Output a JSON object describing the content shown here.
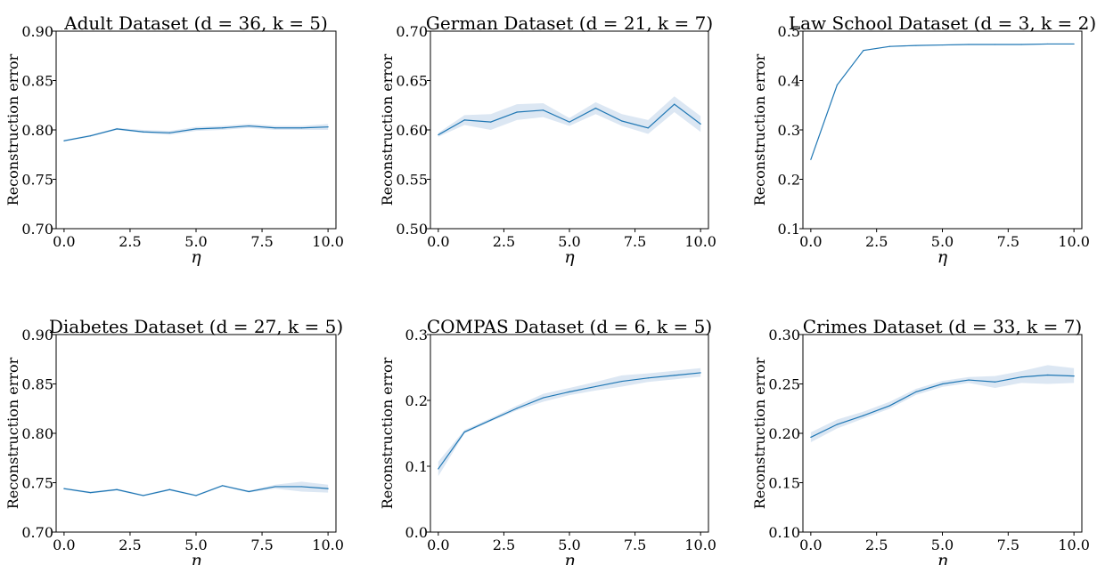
{
  "chart_data": [
    {
      "type": "line",
      "title": "Adult Dataset (d = 36, k = 5)",
      "xlabel": "η",
      "ylabel": "Reconstruction error",
      "xlim": [
        -0.3,
        10.3
      ],
      "ylim": [
        0.7,
        0.9
      ],
      "xticks": [
        0.0,
        2.5,
        5.0,
        7.5,
        10.0
      ],
      "xtick_labels": [
        "0.0",
        "2.5",
        "5.0",
        "7.5",
        "10.0"
      ],
      "yticks": [
        0.7,
        0.75,
        0.8,
        0.85,
        0.9
      ],
      "ytick_labels": [
        "0.70",
        "0.75",
        "0.80",
        "0.85",
        "0.90"
      ],
      "x": [
        0,
        1,
        2,
        3,
        4,
        5,
        6,
        7,
        8,
        9,
        10
      ],
      "y": [
        0.789,
        0.794,
        0.801,
        0.798,
        0.797,
        0.801,
        0.802,
        0.804,
        0.802,
        0.802,
        0.803
      ],
      "lower": [
        0.788,
        0.793,
        0.8,
        0.797,
        0.795,
        0.799,
        0.8,
        0.802,
        0.8,
        0.8,
        0.8
      ],
      "upper": [
        0.79,
        0.795,
        0.802,
        0.8,
        0.799,
        0.803,
        0.804,
        0.806,
        0.804,
        0.804,
        0.806
      ],
      "grid": false
    },
    {
      "type": "line",
      "title": "German Dataset (d = 21, k = 7)",
      "xlabel": "η",
      "ylabel": "Reconstruction error",
      "xlim": [
        -0.3,
        10.3
      ],
      "ylim": [
        0.5,
        0.7
      ],
      "xticks": [
        0.0,
        2.5,
        5.0,
        7.5,
        10.0
      ],
      "xtick_labels": [
        "0.0",
        "2.5",
        "5.0",
        "7.5",
        "10.0"
      ],
      "yticks": [
        0.5,
        0.55,
        0.6,
        0.65,
        0.7
      ],
      "ytick_labels": [
        "0.50",
        "0.55",
        "0.60",
        "0.65",
        "0.70"
      ],
      "x": [
        0,
        1,
        2,
        3,
        4,
        5,
        6,
        7,
        8,
        9,
        10
      ],
      "y": [
        0.595,
        0.61,
        0.608,
        0.618,
        0.62,
        0.608,
        0.622,
        0.609,
        0.602,
        0.626,
        0.606
      ],
      "lower": [
        0.593,
        0.605,
        0.6,
        0.61,
        0.613,
        0.604,
        0.616,
        0.604,
        0.596,
        0.618,
        0.598
      ],
      "upper": [
        0.597,
        0.615,
        0.616,
        0.626,
        0.627,
        0.612,
        0.628,
        0.616,
        0.61,
        0.634,
        0.614
      ],
      "grid": false
    },
    {
      "type": "line",
      "title": "Law School Dataset (d = 3, k = 2)",
      "xlabel": "η",
      "ylabel": "Reconstruction error",
      "xlim": [
        -0.3,
        10.3
      ],
      "ylim": [
        0.1,
        0.5
      ],
      "xticks": [
        0.0,
        2.5,
        5.0,
        7.5,
        10.0
      ],
      "xtick_labels": [
        "0.0",
        "2.5",
        "5.0",
        "7.5",
        "10.0"
      ],
      "yticks": [
        0.1,
        0.2,
        0.3,
        0.4,
        0.5
      ],
      "ytick_labels": [
        "0.1",
        "0.2",
        "0.3",
        "0.4",
        "0.5"
      ],
      "x": [
        0,
        1,
        2,
        3,
        4,
        5,
        6,
        7,
        8,
        9,
        10
      ],
      "y": [
        0.24,
        0.391,
        0.461,
        0.469,
        0.471,
        0.472,
        0.473,
        0.473,
        0.473,
        0.474,
        0.474
      ],
      "lower": [
        0.239,
        0.39,
        0.46,
        0.468,
        0.47,
        0.471,
        0.472,
        0.472,
        0.472,
        0.473,
        0.473
      ],
      "upper": [
        0.241,
        0.392,
        0.462,
        0.47,
        0.472,
        0.473,
        0.474,
        0.474,
        0.474,
        0.475,
        0.475
      ],
      "grid": false
    },
    {
      "type": "line",
      "title": "Diabetes Dataset (d = 27, k = 5)",
      "xlabel": "η",
      "ylabel": "Reconstruction error",
      "xlim": [
        -0.3,
        10.3
      ],
      "ylim": [
        0.7,
        0.9
      ],
      "xticks": [
        0.0,
        2.5,
        5.0,
        7.5,
        10.0
      ],
      "xtick_labels": [
        "0.0",
        "2.5",
        "5.0",
        "7.5",
        "10.0"
      ],
      "yticks": [
        0.7,
        0.75,
        0.8,
        0.85,
        0.9
      ],
      "ytick_labels": [
        "0.70",
        "0.75",
        "0.80",
        "0.85",
        "0.90"
      ],
      "x": [
        0,
        1,
        2,
        3,
        4,
        5,
        6,
        7,
        8,
        9,
        10
      ],
      "y": [
        0.744,
        0.74,
        0.743,
        0.737,
        0.743,
        0.737,
        0.747,
        0.741,
        0.746,
        0.746,
        0.744
      ],
      "lower": [
        0.743,
        0.739,
        0.742,
        0.736,
        0.742,
        0.736,
        0.746,
        0.74,
        0.744,
        0.741,
        0.74
      ],
      "upper": [
        0.745,
        0.741,
        0.744,
        0.738,
        0.744,
        0.738,
        0.748,
        0.742,
        0.748,
        0.751,
        0.748
      ],
      "grid": false
    },
    {
      "type": "line",
      "title": "COMPAS Dataset (d = 6, k = 5)",
      "xlabel": "η",
      "ylabel": "Reconstruction error",
      "xlim": [
        -0.3,
        10.3
      ],
      "ylim": [
        0.0,
        0.3
      ],
      "xticks": [
        0.0,
        2.5,
        5.0,
        7.5,
        10.0
      ],
      "xtick_labels": [
        "0.0",
        "2.5",
        "5.0",
        "7.5",
        "10.0"
      ],
      "yticks": [
        0.0,
        0.1,
        0.2,
        0.3
      ],
      "ytick_labels": [
        "0.0",
        "0.1",
        "0.2",
        "0.3"
      ],
      "x": [
        0,
        1,
        2,
        3,
        4,
        5,
        6,
        7,
        8,
        9,
        10
      ],
      "y": [
        0.096,
        0.152,
        0.17,
        0.188,
        0.204,
        0.213,
        0.221,
        0.229,
        0.234,
        0.238,
        0.242
      ],
      "lower": [
        0.085,
        0.15,
        0.168,
        0.185,
        0.198,
        0.208,
        0.215,
        0.221,
        0.228,
        0.232,
        0.236
      ],
      "upper": [
        0.107,
        0.155,
        0.173,
        0.192,
        0.21,
        0.219,
        0.228,
        0.238,
        0.241,
        0.245,
        0.249
      ],
      "grid": false
    },
    {
      "type": "line",
      "title": "Crimes Dataset (d = 33, k = 7)",
      "xlabel": "η",
      "ylabel": "Reconstruction error",
      "xlim": [
        -0.3,
        10.3
      ],
      "ylim": [
        0.1,
        0.3
      ],
      "xticks": [
        0.0,
        2.5,
        5.0,
        7.5,
        10.0
      ],
      "xtick_labels": [
        "0.0",
        "2.5",
        "5.0",
        "7.5",
        "10.0"
      ],
      "yticks": [
        0.1,
        0.15,
        0.2,
        0.25,
        0.3
      ],
      "ytick_labels": [
        "0.10",
        "0.15",
        "0.20",
        "0.25",
        "0.30"
      ],
      "x": [
        0,
        1,
        2,
        3,
        4,
        5,
        6,
        7,
        8,
        9,
        10
      ],
      "y": [
        0.196,
        0.209,
        0.218,
        0.228,
        0.242,
        0.25,
        0.254,
        0.252,
        0.257,
        0.259,
        0.258
      ],
      "lower": [
        0.191,
        0.205,
        0.215,
        0.225,
        0.239,
        0.247,
        0.251,
        0.246,
        0.251,
        0.25,
        0.251
      ],
      "upper": [
        0.201,
        0.214,
        0.222,
        0.232,
        0.245,
        0.253,
        0.257,
        0.258,
        0.263,
        0.269,
        0.266
      ],
      "grid": false
    }
  ],
  "colors": {
    "line": "#1f77b4",
    "band": "#dce7f3",
    "axis": "#000000"
  }
}
